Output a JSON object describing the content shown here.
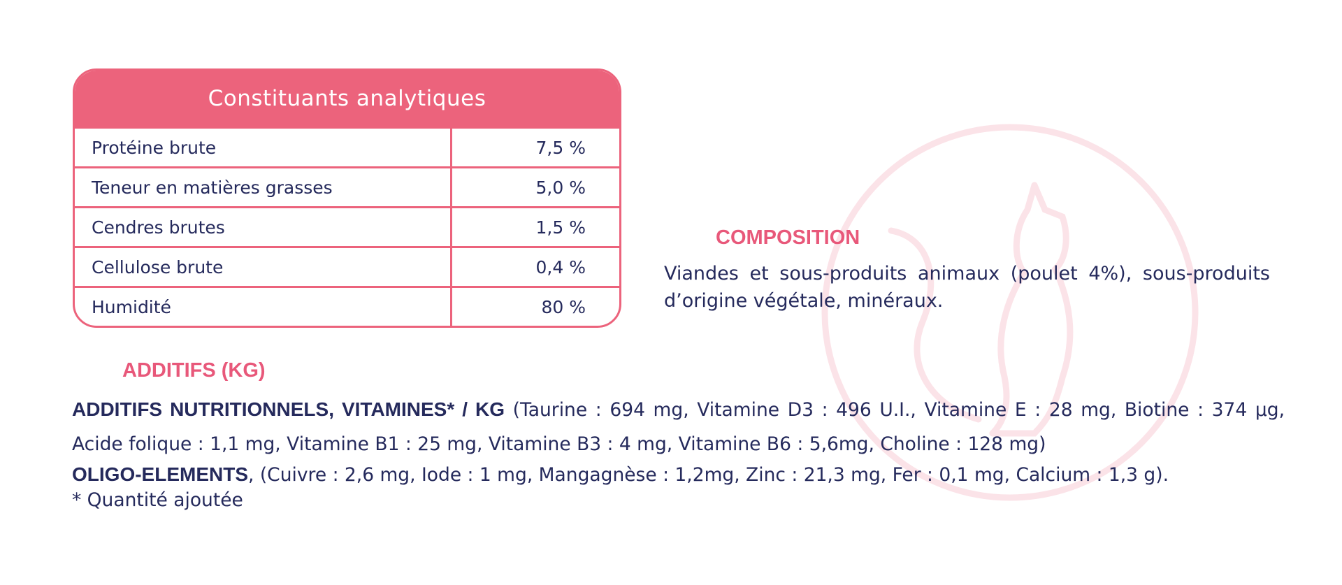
{
  "table": {
    "title": "Constituants analytiques",
    "rows": [
      [
        "Protéine brute",
        "7,5 %"
      ],
      [
        "Teneur en matières grasses",
        "5,0 %"
      ],
      [
        "Cendres brutes",
        "1,5 %"
      ],
      [
        "Cellulose brute",
        "0,4 %"
      ],
      [
        "Humidité",
        "80 %"
      ]
    ]
  },
  "composition": {
    "title": "COMPOSITION",
    "text": "Viandes et sous-produits animaux (poulet 4%), sous-produits d’origine végétale, minéraux."
  },
  "additives": {
    "title": "ADDITIFS (KG)",
    "nutritional": {
      "label": "ADDITIFS NUTRITIONNELS, VITAMINES* / KG",
      "text": "(Taurine : 694 mg, Vitamine D3 : 496 U.I., Vitamine E : 28 mg, Biotine : 374 µg, Acide folique : 1,1 mg, Vitamine B1 : 25 mg, Vitamine B3 : 4 mg, Vitamine B6 : 5,6mg, Choline : 128 mg)"
    },
    "oligo": {
      "label": "OLIGO-ELEMENTS",
      "text": ", (Cuivre : 2,6 mg, Iode : 1 mg, Mangagnèse : 1,2mg, Zinc : 21,3 mg, Fer : 0,1 mg, Calcium : 1,3 g)."
    },
    "footnote": "* Quantité ajoutée"
  }
}
